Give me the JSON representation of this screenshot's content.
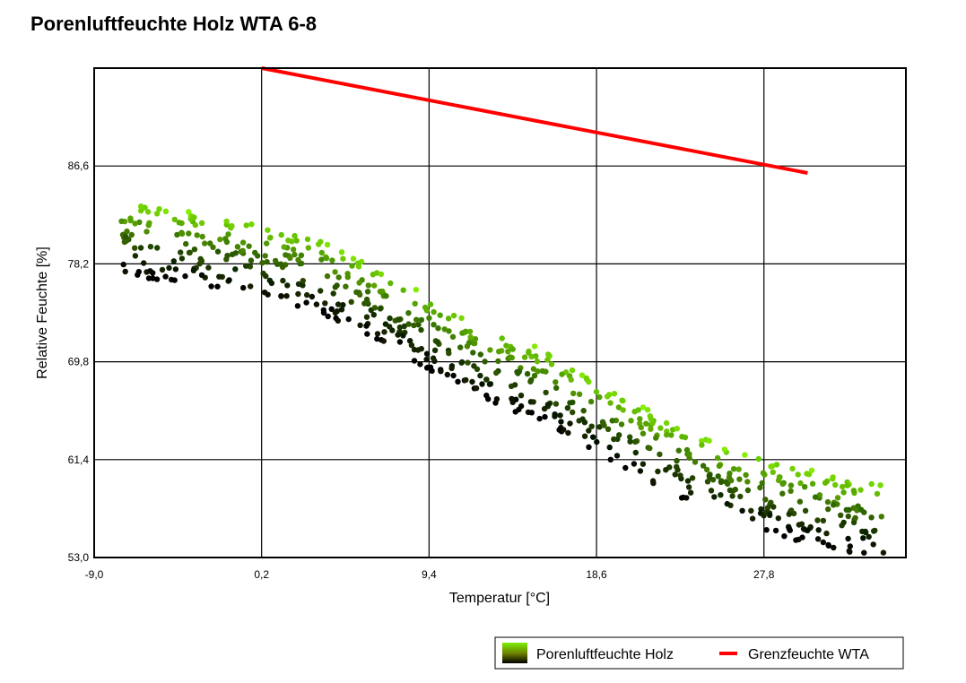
{
  "chart_data": {
    "type": "scatter",
    "title": "Porenluftfeuchte Holz WTA 6-8",
    "xlabel": "Temperatur [°C]",
    "ylabel": "Relative Feuchte [%]",
    "xlim": [
      -9.0,
      35.6
    ],
    "ylim": [
      53.0,
      95.0
    ],
    "x_ticks": [
      -9.0,
      0.2,
      9.4,
      18.6,
      27.8
    ],
    "x_tick_labels": [
      "-9,0",
      "0,2",
      "9,4",
      "18,6",
      "27,8"
    ],
    "y_ticks": [
      53.0,
      61.4,
      69.8,
      78.2,
      86.6
    ],
    "y_tick_labels": [
      "53,0",
      "61,4",
      "69,8",
      "78,2",
      "86,6"
    ],
    "grid": true,
    "legend": "bottom-right",
    "series": [
      {
        "name": "Porenluftfeuchte Holz",
        "kind": "scatter",
        "color_range": [
          "#7cf000",
          "#000000"
        ],
        "band_centerline": [
          [
            -7.5,
            80.5
          ],
          [
            -2.0,
            79.0
          ],
          [
            3.0,
            77.5
          ],
          [
            8.0,
            73.5
          ],
          [
            12.0,
            70.0
          ],
          [
            16.0,
            67.5
          ],
          [
            19.0,
            64.5
          ],
          [
            22.0,
            62.0
          ],
          [
            26.0,
            59.0
          ],
          [
            30.0,
            57.5
          ],
          [
            34.5,
            56.0
          ]
        ],
        "band_half_width": 3.2,
        "point_count": 700
      },
      {
        "name": "Grenzfeuchte WTA",
        "kind": "line",
        "color": "#ff0000",
        "x": [
          0.2,
          30.2
        ],
        "y": [
          95.0,
          86.0
        ]
      }
    ]
  }
}
